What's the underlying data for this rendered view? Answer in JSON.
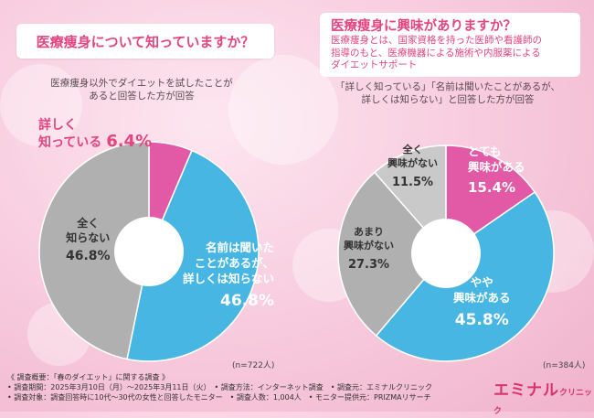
{
  "left": {
    "question": "医療痩身について知っていますか？",
    "note_line1": "医療痩身以外でダイエットを試したことが",
    "note_line2": "あると回答した方が回答",
    "n": "(n=722人)"
  },
  "right": {
    "question": "医療痩身に興味がありますか？",
    "desc_line1": "医療痩身とは、国家資格を持った医師や看護師の",
    "desc_line2": "指導のもと、医療機器による施術や内服薬による",
    "desc_line3": "ダイエットサポート",
    "note_line1": "「詳しく知っている」「名前は聞いたことがあるが、",
    "note_line2": "詳しくは知らない」と回答した方が回答",
    "n": "(n=384人)"
  },
  "chart_data": [
    {
      "type": "pie",
      "slices": [
        {
          "label": "詳しく知っている",
          "value": 6.4,
          "color": "#e25aa5"
        },
        {
          "label": "名前は聞いたことがあるが、詳しくは知らない",
          "value": 46.8,
          "color": "#48b6e3"
        },
        {
          "label": "全く知らない",
          "value": 46.8,
          "color": "#b0b0b0"
        }
      ]
    },
    {
      "type": "pie",
      "slices": [
        {
          "label": "とても興味がある",
          "value": 15.4,
          "color": "#e25aa5"
        },
        {
          "label": "やや興味がある",
          "value": 45.8,
          "color": "#48b6e3"
        },
        {
          "label": "あまり興味がない",
          "value": 27.3,
          "color": "#b0b0b0"
        },
        {
          "label": "全く興味がない",
          "value": 11.5,
          "color": "#c9c9c9"
        }
      ]
    }
  ],
  "labels": {
    "l_pink_1": "詳しく",
    "l_pink_2": "知っている",
    "l_pink_pct": "6.4%",
    "l_blue_1": "名前は聞いた",
    "l_blue_2": "ことがあるが、",
    "l_blue_3": "詳しくは知らない",
    "l_blue_pct": "46.8%",
    "l_gray_1": "全く",
    "l_gray_2": "知らない",
    "l_gray_pct": "46.8%",
    "r_pink_1": "とても",
    "r_pink_2": "興味がある",
    "r_pink_pct": "15.4%",
    "r_blue_1": "やや",
    "r_blue_2": "興味がある",
    "r_blue_pct": "45.8%",
    "r_gray_1": "あまり",
    "r_gray_2": "興味がない",
    "r_gray_pct": "27.3%",
    "r_light_1": "全く",
    "r_light_2": "興味がない",
    "r_light_pct": "11.5%"
  },
  "footer": {
    "line1": "《 調査概要：「春のダイエット」に関する調査 》",
    "line2": "• 調査期間：2025年3月10日（月）〜2025年3月11日（火）　• 調査方法：インターネット調査　• 調査元：エミナルクリニック",
    "line3": "• 調査対象：調査回答時に10代〜30代の女性と回答したモニター　• 調査人数：1,004人　• モニター提供元：PRIZMAリサーチ"
  },
  "logo": {
    "main": "エミナル",
    "sub": "クリニック"
  }
}
